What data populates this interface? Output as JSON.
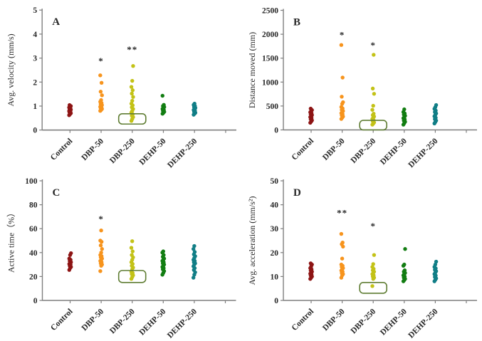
{
  "figure": {
    "background": "#ffffff",
    "axis_color": "#7f7f7f",
    "text_color": "#262626",
    "outlier_color": "#dd7e7e",
    "box_color": "#5f7d33",
    "categories": [
      "Control",
      "DBP-50",
      "DBP-250",
      "DEHP-50",
      "DEHP-250"
    ],
    "group_colors": [
      "#8d1414",
      "#f7941d",
      "#c3c217",
      "#127d12",
      "#117e86"
    ]
  },
  "chart_data": [
    {
      "type": "scatter",
      "letter": "A",
      "ylabel": "Avg. velocity (mm/s)",
      "ylim": [
        0,
        5
      ],
      "yticks": [
        0,
        1,
        2,
        3,
        4,
        5
      ],
      "categories": [
        "Control",
        "DBP-50",
        "DBP-250",
        "DEHP-50",
        "DEHP-250"
      ],
      "series": [
        {
          "name": "Control",
          "values": [
            0.62,
            0.66,
            0.7,
            0.73,
            0.76,
            0.79,
            0.82,
            0.85,
            0.88,
            0.91,
            0.94,
            0.97,
            1.0,
            1.04
          ]
        },
        {
          "name": "DBP-50",
          "values": [
            0.8,
            0.84,
            0.88,
            0.91,
            0.94,
            0.97,
            1.0,
            1.04,
            1.08,
            1.13,
            1.18,
            1.25,
            1.45,
            1.6,
            1.97,
            2.28
          ]
        },
        {
          "name": "DBP-250",
          "values": [
            0.38,
            0.46,
            0.54,
            0.6,
            0.66,
            0.73,
            0.8,
            0.88,
            0.95,
            1.03,
            1.1,
            1.22,
            1.38,
            1.52,
            1.66,
            1.8,
            2.05,
            2.67
          ]
        },
        {
          "name": "DEHP-50",
          "values": [
            0.68,
            0.72,
            0.76,
            0.8,
            0.84,
            0.88,
            0.92,
            0.96,
            1.0,
            1.05,
            1.43
          ]
        },
        {
          "name": "DEHP-250",
          "values": [
            0.64,
            0.68,
            0.72,
            0.76,
            0.8,
            0.84,
            0.88,
            0.92,
            0.96,
            1.0,
            1.05,
            1.1
          ]
        }
      ],
      "outliers": [
        {
          "group": 1,
          "value": 2.97,
          "n": 1
        },
        {
          "group": 2,
          "value": 3.45,
          "n": 2
        }
      ],
      "highlight_box": {
        "group": 2,
        "min": 0.25,
        "max": 0.68
      }
    },
    {
      "type": "scatter",
      "letter": "B",
      "ylabel": "Distance moved (mm)",
      "ylim": [
        0,
        2500
      ],
      "yticks": [
        0,
        500,
        1000,
        1500,
        2000,
        2500
      ],
      "categories": [
        "Control",
        "DBP-50",
        "DBP-250",
        "DEHP-50",
        "DEHP-250"
      ],
      "series": [
        {
          "name": "Control",
          "values": [
            150,
            175,
            200,
            225,
            250,
            270,
            290,
            310,
            330,
            350,
            370,
            390,
            415,
            445
          ]
        },
        {
          "name": "DBP-50",
          "values": [
            230,
            255,
            280,
            305,
            330,
            350,
            370,
            395,
            420,
            450,
            480,
            545,
            580,
            695,
            1095,
            1775
          ]
        },
        {
          "name": "DBP-250",
          "values": [
            110,
            130,
            155,
            180,
            205,
            230,
            255,
            280,
            310,
            340,
            420,
            505,
            755,
            865,
            1570
          ]
        },
        {
          "name": "DEHP-50",
          "values": [
            110,
            140,
            170,
            195,
            220,
            245,
            270,
            295,
            320,
            345,
            375,
            430
          ]
        },
        {
          "name": "DEHP-250",
          "values": [
            135,
            165,
            195,
            225,
            255,
            285,
            315,
            345,
            375,
            405,
            440,
            475,
            520
          ]
        }
      ],
      "outliers": [
        {
          "group": 1,
          "value": 2030,
          "n": 1
        },
        {
          "group": 2,
          "value": 1815,
          "n": 1
        }
      ],
      "highlight_box": {
        "group": 2,
        "min": 0,
        "max": 200
      }
    },
    {
      "type": "scatter",
      "letter": "C",
      "ylabel": "Active time（%）",
      "ylim": [
        0,
        100
      ],
      "yticks": [
        0,
        20,
        40,
        60,
        80,
        100
      ],
      "categories": [
        "Control",
        "DBP-50",
        "DBP-250",
        "DEHP-50",
        "DEHP-250"
      ],
      "series": [
        {
          "name": "Control",
          "values": [
            25.5,
            27,
            28,
            29,
            30,
            30.5,
            31,
            32,
            33,
            34,
            35,
            38,
            39.5
          ]
        },
        {
          "name": "DBP-50",
          "values": [
            24.5,
            29,
            30,
            31,
            32,
            33,
            34,
            35,
            36,
            37,
            38,
            40,
            43,
            46,
            49,
            50,
            58.5
          ]
        },
        {
          "name": "DBP-250",
          "values": [
            18,
            19.5,
            21,
            22,
            23,
            24,
            26,
            27.5,
            29,
            30.5,
            32,
            34,
            36,
            38,
            41,
            44,
            49.5
          ]
        },
        {
          "name": "DEHP-50",
          "values": [
            21.5,
            23,
            24.5,
            26,
            27,
            28,
            29,
            30,
            31,
            32,
            33,
            34,
            35,
            36.5,
            38,
            40,
            41
          ]
        },
        {
          "name": "DEHP-250",
          "values": [
            19,
            21.5,
            23.5,
            25.5,
            27,
            28.5,
            30,
            31,
            32,
            33,
            34,
            35.5,
            37,
            38.5,
            40.5,
            43,
            45.5
          ]
        }
      ],
      "outliers": [
        {
          "group": 1,
          "value": 70,
          "n": 1
        }
      ],
      "highlight_box": {
        "group": 2,
        "min": 15,
        "max": 25
      }
    },
    {
      "type": "scatter",
      "letter": "D",
      "ylabel": "Avg. acceleration (mm/s²)",
      "ylim": [
        0,
        50
      ],
      "yticks": [
        0,
        10,
        20,
        30,
        40,
        50
      ],
      "categories": [
        "Control",
        "DBP-50",
        "DBP-250",
        "DEHP-50",
        "DEHP-250"
      ],
      "series": [
        {
          "name": "Control",
          "values": [
            9,
            9.5,
            10,
            10.4,
            10.8,
            11.2,
            11.6,
            12,
            12.5,
            13,
            13.5,
            14.2,
            15,
            15.5
          ]
        },
        {
          "name": "DBP-50",
          "values": [
            9.5,
            10.5,
            11,
            11.5,
            12,
            12.5,
            13,
            13.5,
            14,
            14.5,
            15,
            17.5,
            22.5,
            23.5,
            24.2,
            27.8
          ]
        },
        {
          "name": "DBP-250",
          "values": [
            6,
            9,
            9.5,
            10,
            10.5,
            11,
            11.5,
            12,
            12.6,
            13.2,
            14,
            15.2,
            19
          ]
        },
        {
          "name": "DEHP-50",
          "values": [
            8,
            8.5,
            9,
            9.5,
            10,
            10.5,
            11,
            11.5,
            12,
            12.6,
            14.5,
            15,
            21.5
          ]
        },
        {
          "name": "DEHP-250",
          "values": [
            8,
            8.6,
            9.2,
            9.8,
            10.4,
            11,
            11.6,
            12.2,
            12.8,
            13.4,
            14,
            15,
            16.2
          ]
        }
      ],
      "outliers": [
        {
          "group": 1,
          "value": 37.5,
          "n": 2
        },
        {
          "group": 2,
          "value": 32,
          "n": 1
        }
      ],
      "highlight_box": {
        "group": 2,
        "min": 3,
        "max": 7.5
      }
    }
  ]
}
